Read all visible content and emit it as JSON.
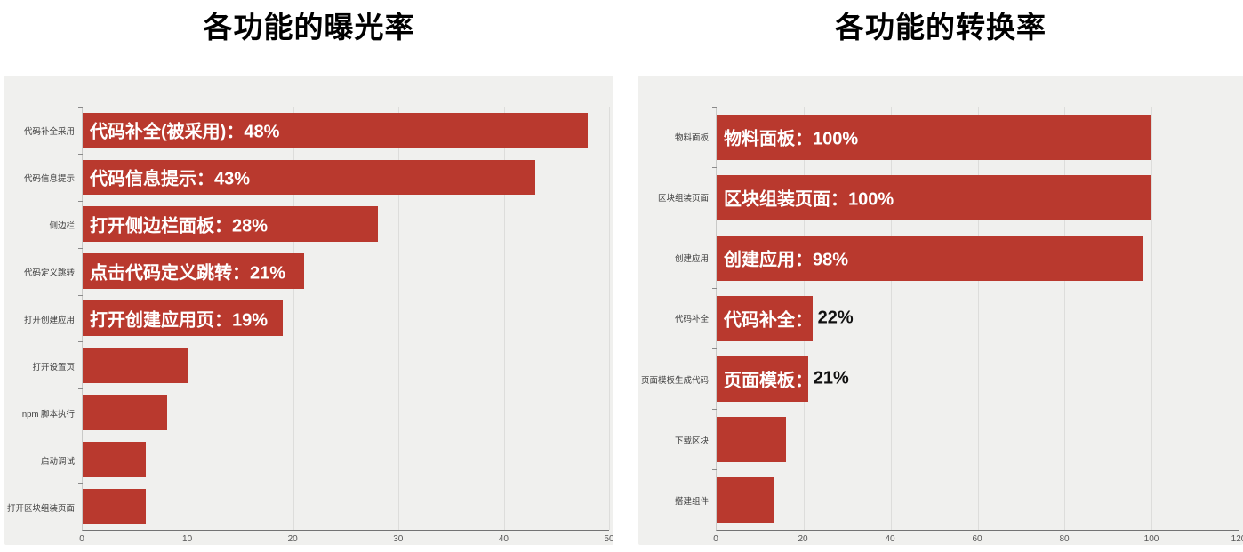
{
  "chart_data": [
    {
      "type": "bar",
      "orientation": "horizontal",
      "title": "各功能的曝光率",
      "categories": [
        "代码补全采用",
        "代码信息提示",
        "侧边栏",
        "代码定义跳转",
        "打开创建应用",
        "打开设置页",
        "npm 脚本执行",
        "启动调试",
        "打开区块组装页面"
      ],
      "values": [
        48,
        43,
        28,
        21,
        19,
        10,
        8,
        6,
        6
      ],
      "annotations": [
        {
          "inside": "代码补全(被采用)：48%",
          "outside": ""
        },
        {
          "inside": "代码信息提示：43%",
          "outside": ""
        },
        {
          "inside": "打开侧边栏面板：28%",
          "outside": ""
        },
        {
          "inside": "点击代码定义跳转：21%",
          "outside": ""
        },
        {
          "inside": "打开创建应用页：19%",
          "outside": ""
        },
        {
          "inside": "",
          "outside": ""
        },
        {
          "inside": "",
          "outside": ""
        },
        {
          "inside": "",
          "outside": ""
        },
        {
          "inside": "",
          "outside": ""
        }
      ],
      "xlabel": "",
      "ylabel": "",
      "xlim": [
        0,
        50
      ],
      "xticks": [
        0,
        10,
        20,
        30,
        40,
        50
      ],
      "grid": true,
      "legend": false,
      "bar_color": "#b9392e",
      "panel_background": "#f0f0ee"
    },
    {
      "type": "bar",
      "orientation": "horizontal",
      "title": "各功能的转换率",
      "categories": [
        "物料面板",
        "区块组装页面",
        "创建应用",
        "代码补全",
        "页面模板生成代码",
        "下载区块",
        "搭建组件"
      ],
      "values": [
        100,
        100,
        98,
        22,
        21,
        16,
        13
      ],
      "annotations": [
        {
          "inside": "物料面板：100%",
          "outside": ""
        },
        {
          "inside": "区块组装页面：100%",
          "outside": ""
        },
        {
          "inside": "创建应用：98%",
          "outside": ""
        },
        {
          "inside": "代码补全：",
          "outside": "22%"
        },
        {
          "inside": "页面模板：",
          "outside": "21%"
        },
        {
          "inside": "",
          "outside": ""
        },
        {
          "inside": "",
          "outside": ""
        }
      ],
      "xlabel": "",
      "ylabel": "",
      "xlim": [
        0,
        120
      ],
      "xticks": [
        0,
        20,
        40,
        60,
        80,
        100,
        120
      ],
      "grid": true,
      "legend": false,
      "bar_color": "#b9392e",
      "panel_background": "#f0f0ee"
    }
  ]
}
